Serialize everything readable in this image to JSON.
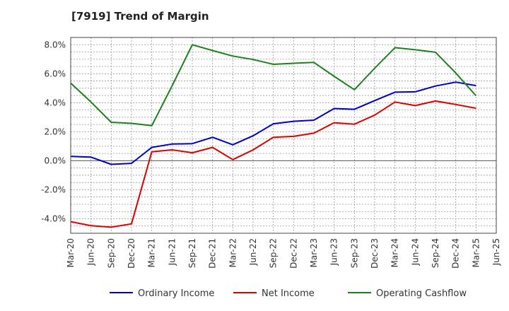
{
  "chart_data": {
    "type": "line",
    "title": "[7919]  Trend of Margin",
    "xlabel": "",
    "ylabel": "",
    "ylim": [
      -5.0,
      8.5
    ],
    "yticks": [
      8.0,
      6.0,
      4.0,
      2.0,
      0.0,
      -2.0,
      -4.0
    ],
    "ytick_labels": [
      "8.0%",
      "6.0%",
      "4.0%",
      "2.0%",
      "0.0%",
      "-2.0%",
      "-4.0%"
    ],
    "categories": [
      "Mar-20",
      "Jun-20",
      "Sep-20",
      "Dec-20",
      "Mar-21",
      "Jun-21",
      "Sep-21",
      "Dec-21",
      "Mar-22",
      "Jun-22",
      "Sep-22",
      "Dec-22",
      "Mar-23",
      "Jun-23",
      "Sep-23",
      "Dec-23",
      "Mar-24",
      "Jun-24",
      "Sep-24",
      "Dec-24",
      "Mar-25",
      "Jun-25"
    ],
    "grid": true,
    "legend_position": "bottom",
    "series": [
      {
        "name": "Ordinary Income",
        "color": "#0000cc",
        "values": [
          0.3,
          0.25,
          -0.25,
          -0.18,
          0.92,
          1.15,
          1.18,
          1.62,
          1.1,
          1.72,
          2.55,
          2.72,
          2.8,
          3.6,
          3.55,
          4.15,
          4.73,
          4.75,
          5.15,
          5.42,
          5.18,
          null
        ]
      },
      {
        "name": "Net Income",
        "color": "#e00000",
        "values": [
          -4.2,
          -4.48,
          -4.58,
          -4.35,
          0.62,
          0.75,
          0.55,
          0.92,
          0.08,
          0.75,
          1.62,
          1.68,
          1.9,
          2.62,
          2.52,
          3.15,
          4.05,
          3.8,
          4.12,
          3.88,
          3.62,
          null
        ]
      },
      {
        "name": "Operating Cashflow",
        "color": "#208020",
        "values": [
          5.35,
          4.05,
          2.65,
          2.58,
          2.42,
          5.15,
          8.0,
          7.6,
          7.22,
          6.98,
          6.65,
          6.72,
          6.78,
          5.82,
          4.9,
          6.38,
          7.8,
          7.65,
          7.48,
          6.05,
          4.48,
          null
        ]
      }
    ]
  }
}
